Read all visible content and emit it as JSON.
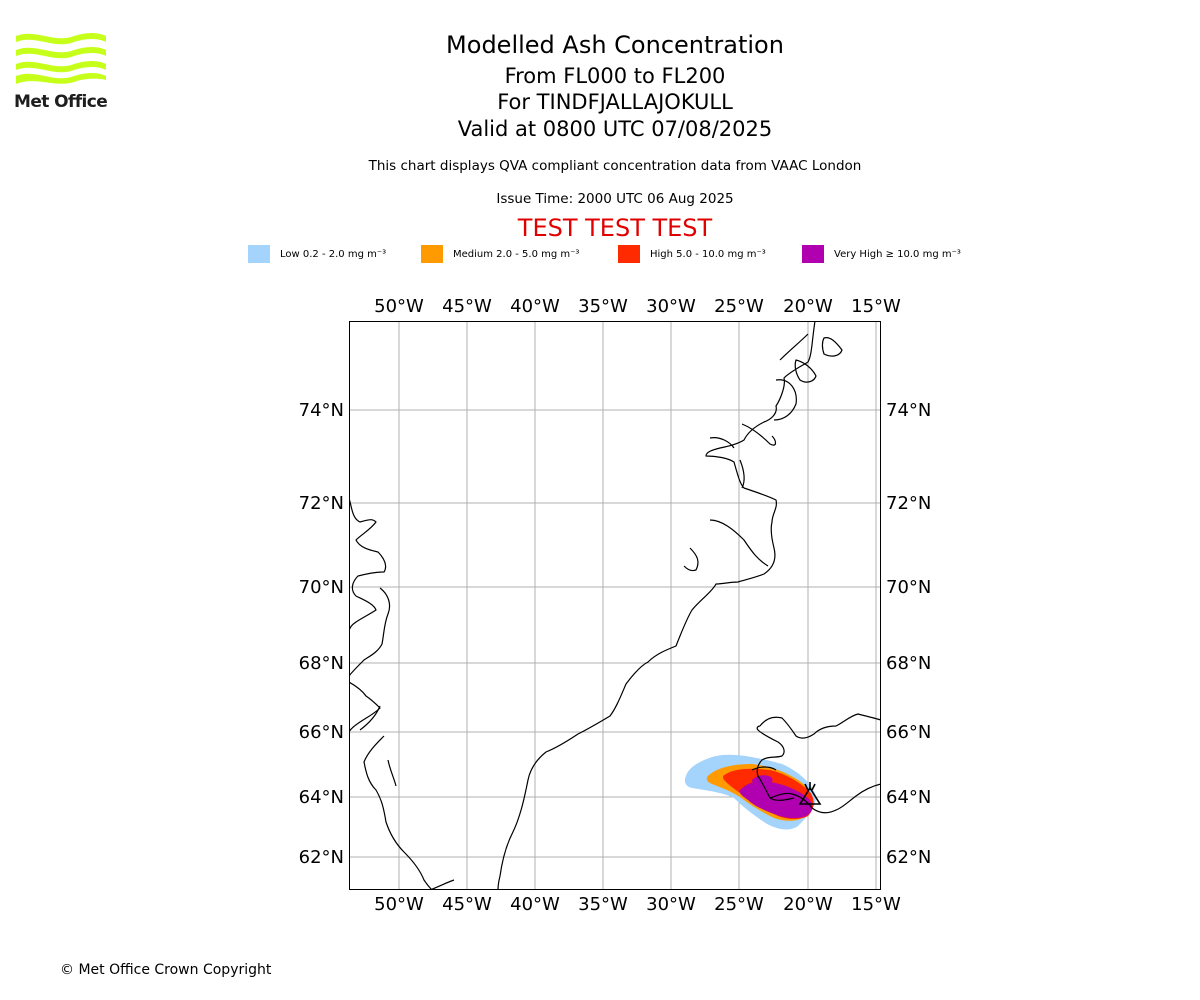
{
  "header": {
    "logo_text": "Met Office",
    "title": "Modelled Ash Concentration",
    "level_range": "From FL000 to FL200",
    "volcano": "For TINDFJALLAJOKULL",
    "valid_time": "Valid at 0800 UTC 07/08/2025",
    "description": "This chart displays QVA compliant concentration data from VAAC London",
    "issue_time": "Issue Time: 2000 UTC 06 Aug 2025",
    "test_banner": "TEST TEST TEST"
  },
  "legend": [
    {
      "label": "Low 0.2 - 2.0 mg m⁻³",
      "color": "#a4d3fb"
    },
    {
      "label": "Medium 2.0 - 5.0 mg m⁻³",
      "color": "#ff9a00"
    },
    {
      "label": "High 5.0 - 10.0 mg m⁻³",
      "color": "#ff2a00"
    },
    {
      "label": "Very High ≥ 10.0 mg m⁻³",
      "color": "#b000b0"
    }
  ],
  "map": {
    "lon_ticks": [
      "50°W",
      "45°W",
      "40°W",
      "35°W",
      "30°W",
      "25°W",
      "20°W",
      "15°W"
    ],
    "lat_ticks": [
      "74°N",
      "72°N",
      "70°N",
      "68°N",
      "66°N",
      "64°N",
      "62°N"
    ],
    "volcano_icon": "volcano-triangle-icon",
    "grid": true,
    "colors": {
      "coast": "#000000",
      "grid": "#b0b0b0"
    }
  },
  "footer": {
    "copyright": "© Met Office Crown Copyright"
  }
}
